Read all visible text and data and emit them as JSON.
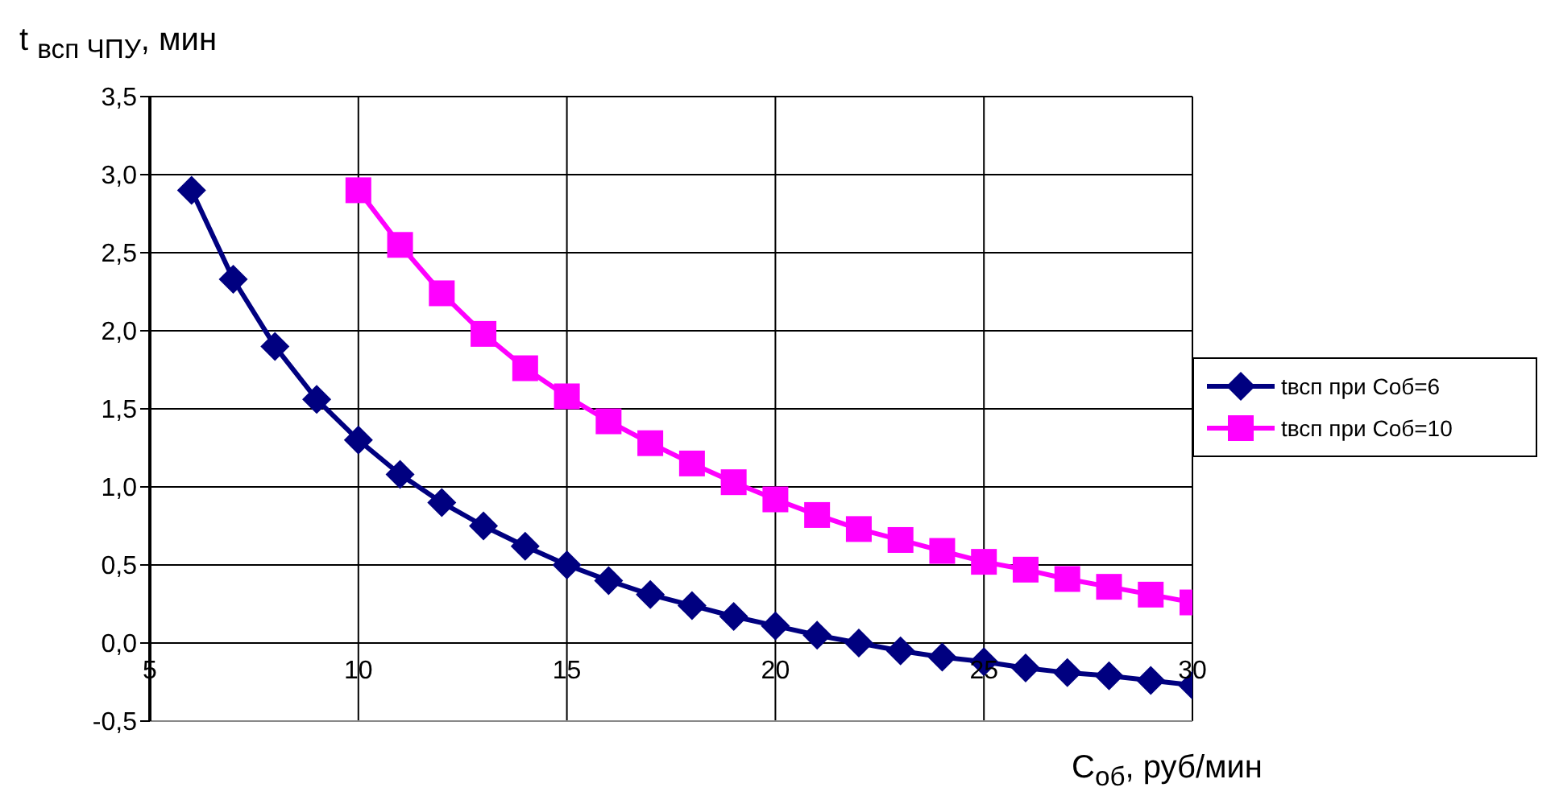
{
  "chart_data": {
    "type": "line",
    "xlabel": "C$_{об}$, руб/мин",
    "ylabel": "t $_{всп ЧПУ}$, мин",
    "xlim": [
      5,
      30
    ],
    "xticks": [
      5,
      10,
      15,
      20,
      25,
      30
    ],
    "ylim": [
      -0.5,
      3.5
    ],
    "yticks": [
      {
        "value": -0.5,
        "label": "-0,5"
      },
      {
        "value": 0,
        "label": "0,0"
      },
      {
        "value": 0.5,
        "label": "0,5"
      },
      {
        "value": 1,
        "label": "1,0"
      },
      {
        "value": 1.5,
        "label": "1,5"
      },
      {
        "value": 2,
        "label": "2,0"
      },
      {
        "value": 2.5,
        "label": "2,5"
      },
      {
        "value": 3,
        "label": "3,0"
      },
      {
        "value": 3.5,
        "label": "3,5"
      }
    ],
    "grid": true,
    "legend": "right",
    "line_style": "solid",
    "series": [
      {
        "name": "tвсп при Соб=6",
        "color": "#000080",
        "marker": "diamond",
        "x": [
          6,
          7,
          8,
          9,
          10,
          11,
          12,
          13,
          14,
          15,
          16,
          17,
          18,
          19,
          20,
          21,
          22,
          23,
          24,
          25,
          26,
          27,
          28,
          29,
          30
        ],
        "values": [
          2.9,
          2.33,
          1.9,
          1.56,
          1.3,
          1.08,
          0.9,
          0.75,
          0.62,
          0.5,
          0.4,
          0.31,
          0.24,
          0.17,
          0.11,
          0.05,
          0,
          -0.05,
          -0.09,
          -0.12,
          -0.16,
          -0.19,
          -0.21,
          -0.24,
          -0.27
        ]
      },
      {
        "name": "tвсп при Соб=10",
        "color": "#ff00ff",
        "marker": "square",
        "x": [
          10,
          11,
          12,
          13,
          14,
          15,
          16,
          17,
          18,
          19,
          20,
          21,
          22,
          23,
          24,
          25,
          26,
          27,
          28,
          29,
          30
        ],
        "values": [
          2.9,
          2.55,
          2.24,
          1.98,
          1.76,
          1.58,
          1.42,
          1.28,
          1.15,
          1.03,
          0.92,
          0.82,
          0.73,
          0.66,
          0.59,
          0.52,
          0.47,
          0.41,
          0.36,
          0.31,
          0.26
        ]
      }
    ]
  }
}
